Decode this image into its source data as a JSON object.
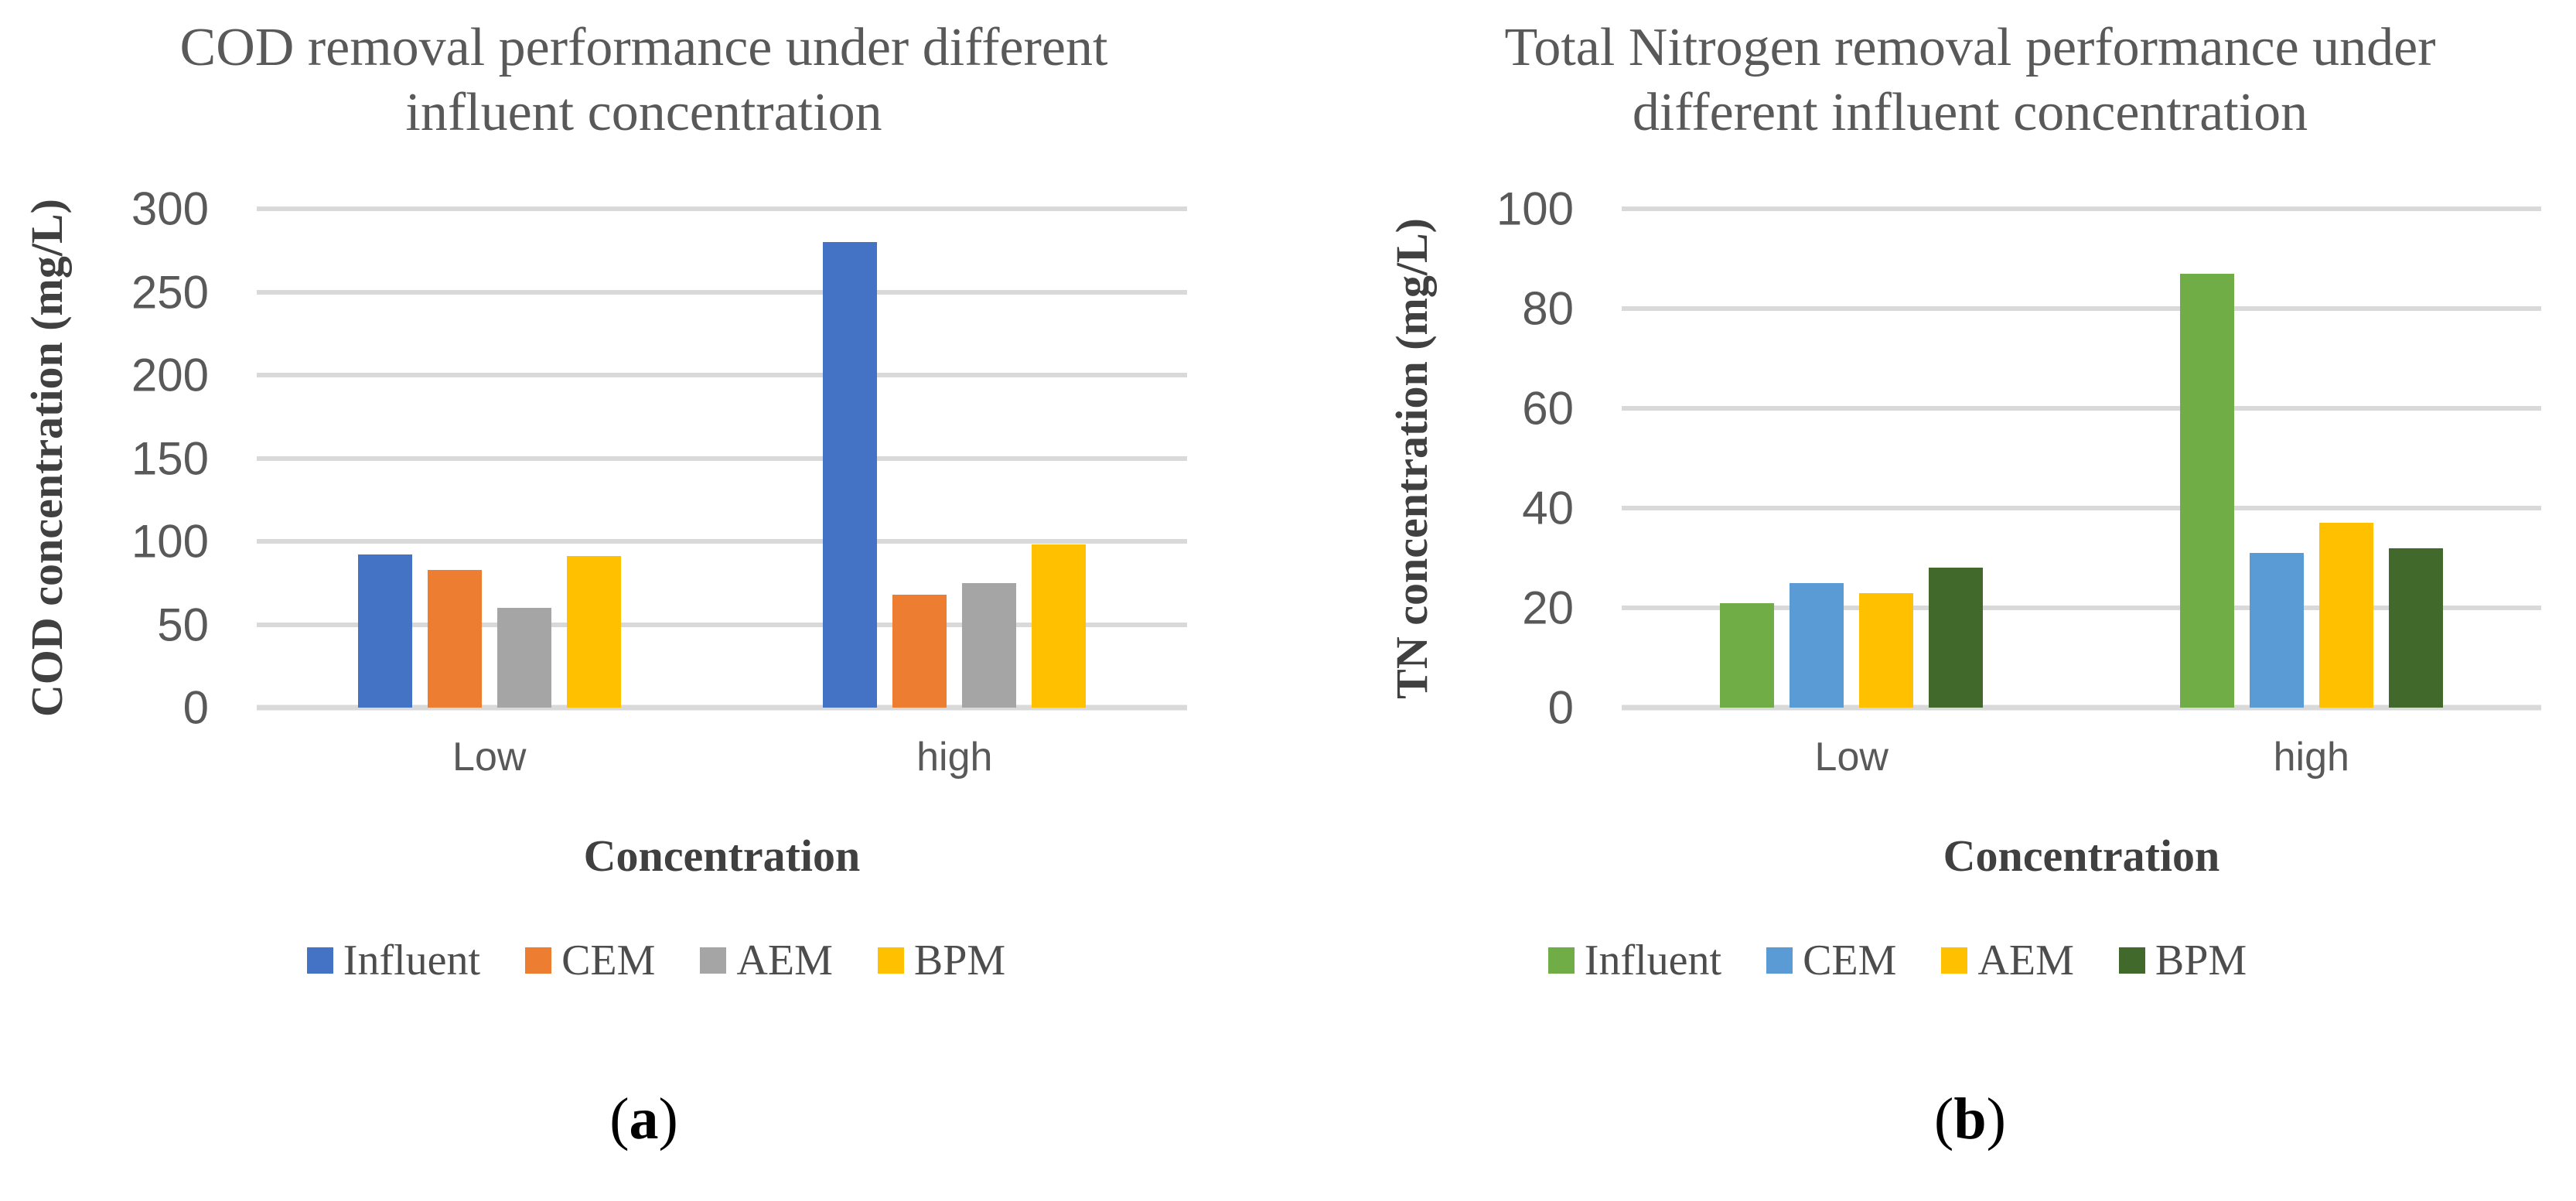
{
  "figure": {
    "background": "#FFFFFF",
    "colors": {
      "gridline": "#D9D9D9",
      "title_text": "#595959",
      "axis_title_text": "#404040",
      "tick_text": "#595959",
      "category_text": "#595959",
      "legend_text": "#4D4D4D",
      "panel_label_text": "#000000"
    }
  },
  "chart_data": [
    {
      "type": "bar",
      "title": "COD removal performance under different influent concentration",
      "title_lines": [
        "COD removal performance under different",
        "influent concentration"
      ],
      "ylabel": "COD concentration (mg/L)",
      "xlabel": "Concentration",
      "categories": [
        "Low",
        "high"
      ],
      "yticks": [
        0,
        50,
        100,
        150,
        200,
        250,
        300
      ],
      "ylim": [
        0,
        300
      ],
      "grid": true,
      "legend_position": "bottom",
      "series": [
        {
          "name": "Influent",
          "color": "#4472C4",
          "values": [
            92,
            280
          ]
        },
        {
          "name": "CEM",
          "color": "#ED7D31",
          "values": [
            83,
            68
          ]
        },
        {
          "name": "AEM",
          "color": "#A5A5A5",
          "values": [
            60,
            75
          ]
        },
        {
          "name": "BPM",
          "color": "#FFC000",
          "values": [
            91,
            98
          ]
        }
      ],
      "panel_label": {
        "prefix": "(",
        "letter": "a",
        "suffix": ")"
      }
    },
    {
      "type": "bar",
      "title": "Total Nitrogen removal performance under different influent concentration",
      "title_lines": [
        "Total Nitrogen removal performance under",
        "different influent concentration"
      ],
      "ylabel": "TN concentration (mg/L)",
      "xlabel": "Concentration",
      "categories": [
        "Low",
        "high"
      ],
      "yticks": [
        0,
        20,
        40,
        60,
        80,
        100
      ],
      "ylim": [
        0,
        100
      ],
      "grid": true,
      "legend_position": "bottom",
      "series": [
        {
          "name": "Influent",
          "color": "#70AD47",
          "values": [
            21,
            87
          ]
        },
        {
          "name": "CEM",
          "color": "#5B9BD5",
          "values": [
            25,
            31
          ]
        },
        {
          "name": "AEM",
          "color": "#FFC000",
          "values": [
            23,
            37
          ]
        },
        {
          "name": "BPM",
          "color": "#41692B",
          "values": [
            28,
            32
          ]
        }
      ],
      "panel_label": {
        "prefix": "(",
        "letter": "b",
        "suffix": ")"
      }
    }
  ]
}
